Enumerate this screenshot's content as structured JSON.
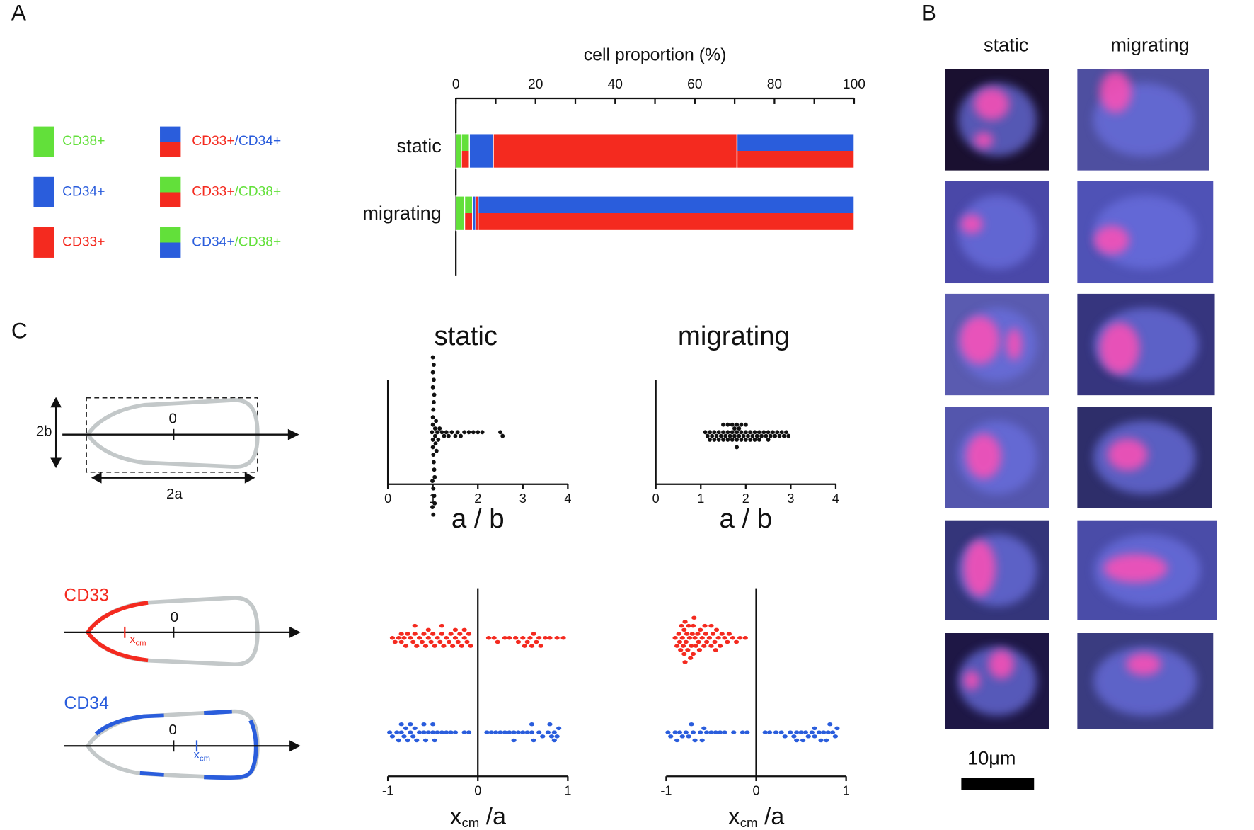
{
  "panel_labels": [
    "A",
    "B",
    "C"
  ],
  "panel_b": {
    "columns": [
      "static",
      "migrating"
    ],
    "scale_bar": "10μm"
  },
  "schematic": {
    "height_label": "2b",
    "width_label": "2a",
    "origin": "0",
    "markers": [
      {
        "label": "CD33",
        "x": "x",
        "sub": "cm"
      },
      {
        "label": "CD34",
        "x": "x",
        "sub": "cm"
      }
    ]
  },
  "chart_data": [
    {
      "type": "bar",
      "orientation": "horizontal",
      "stacked": true,
      "xlabel": "cell proportion (%)",
      "categories": [
        "static",
        "migrating"
      ],
      "xlim": [
        0,
        100
      ],
      "xticks": [
        0,
        20,
        40,
        60,
        80,
        100
      ],
      "minor_xticks": [
        10,
        30,
        50,
        70,
        90
      ],
      "legend": "left",
      "series": [
        {
          "name": "CD38+",
          "color": [
            "#62e03a"
          ],
          "values": [
            1.4,
            2.2
          ]
        },
        {
          "name": "CD33+/CD38+",
          "color": [
            "#f42a1f",
            "#62e03a"
          ],
          "values": [
            2,
            2
          ]
        },
        {
          "name": "CD34+",
          "color": [
            "#2a5ddc"
          ],
          "values": [
            6,
            0.8
          ]
        },
        {
          "name": "CD33+",
          "color": [
            "#f42a1f"
          ],
          "values": [
            61.2,
            0.6
          ]
        },
        {
          "name": "CD33+/CD34+",
          "color": [
            "#f42a1f",
            "#2a5ddc"
          ],
          "values": [
            29.4,
            94.4
          ]
        },
        {
          "name": "CD34+/CD38+",
          "color": [
            "#2a5ddc",
            "#62e03a"
          ],
          "values": [
            0,
            0
          ]
        }
      ]
    },
    {
      "type": "swarm",
      "title": "static",
      "xlabel": "a / b",
      "xlim": [
        0,
        4
      ],
      "xticks": [
        0,
        1,
        2,
        3,
        4
      ],
      "series": [
        {
          "color": "#111111",
          "values": [
            0.98,
            1,
            1,
            1,
            1,
            1.01,
            1.01,
            1.02,
            1.02,
            1.03,
            1.03,
            1.04,
            1.05,
            1,
            0.99,
            1.02,
            1.01,
            1,
            1.03,
            1.05,
            1.06,
            1.07,
            1.02,
            1.04,
            0.99,
            1,
            1.01,
            1.08,
            1.1,
            1.12,
            1.15,
            1.2,
            1.25,
            1.3,
            1.35,
            1.42,
            1.5,
            1.55,
            1.62,
            1.7,
            1.8,
            1.9,
            2.0,
            2.1,
            2.5,
            2.55
          ]
        }
      ]
    },
    {
      "type": "swarm",
      "title": "migrating",
      "xlabel": "a / b",
      "xlim": [
        0,
        4
      ],
      "xticks": [
        0,
        1,
        2,
        3,
        4
      ],
      "series": [
        {
          "color": "#111111",
          "values": [
            1.1,
            1.15,
            1.2,
            1.2,
            1.25,
            1.3,
            1.3,
            1.35,
            1.4,
            1.4,
            1.45,
            1.5,
            1.5,
            1.5,
            1.55,
            1.6,
            1.6,
            1.6,
            1.65,
            1.7,
            1.7,
            1.7,
            1.75,
            1.75,
            1.8,
            1.8,
            1.8,
            1.8,
            1.85,
            1.85,
            1.9,
            1.9,
            1.9,
            1.95,
            2.0,
            2.0,
            2.0,
            2.05,
            2.1,
            2.1,
            2.15,
            2.2,
            2.2,
            2.25,
            2.3,
            2.3,
            2.35,
            2.4,
            2.45,
            2.5,
            2.5,
            2.55,
            2.6,
            2.65,
            2.7,
            2.75,
            2.8,
            2.85,
            2.9,
            2.95
          ]
        }
      ]
    },
    {
      "type": "swarm",
      "xlabel": {
        "main": "x",
        "sub": "cm",
        "rest": " /a"
      },
      "xlim": [
        -1,
        1
      ],
      "xticks": [
        -1,
        0,
        1
      ],
      "series": [
        {
          "color": "#f42a1f",
          "values": [
            -0.95,
            -0.92,
            -0.88,
            -0.85,
            -0.82,
            -0.8,
            -0.78,
            -0.75,
            -0.72,
            -0.7,
            -0.68,
            -0.65,
            -0.62,
            -0.6,
            -0.58,
            -0.55,
            -0.52,
            -0.5,
            -0.48,
            -0.45,
            -0.42,
            -0.4,
            -0.38,
            -0.35,
            -0.32,
            -0.3,
            -0.28,
            -0.25,
            -0.22,
            -0.2,
            -0.18,
            -0.15,
            -0.12,
            -0.1,
            -0.08,
            0.12,
            0.18,
            0.22,
            0.3,
            0.35,
            0.42,
            0.45,
            0.5,
            0.52,
            0.58,
            0.6,
            0.62,
            0.68,
            0.7,
            0.75,
            0.8,
            0.88,
            0.95,
            -0.85,
            -0.7,
            -0.55,
            -0.4,
            -0.25,
            -0.15,
            0.55,
            0.65
          ]
        },
        {
          "color": "#2a5ddc",
          "values": [
            -0.98,
            -0.95,
            -0.9,
            -0.88,
            -0.85,
            -0.82,
            -0.8,
            -0.78,
            -0.75,
            -0.72,
            -0.7,
            -0.68,
            -0.65,
            -0.6,
            -0.58,
            -0.55,
            -0.5,
            -0.48,
            -0.45,
            -0.4,
            -0.35,
            -0.3,
            -0.25,
            -0.15,
            -0.1,
            0.1,
            0.15,
            0.2,
            0.25,
            0.3,
            0.35,
            0.4,
            0.45,
            0.5,
            0.55,
            0.6,
            0.62,
            0.68,
            0.72,
            0.78,
            0.82,
            0.85,
            0.88,
            0.9,
            -0.85,
            -0.75,
            -0.6,
            -0.5,
            0.4,
            0.6,
            0.8,
            0.85
          ]
        }
      ]
    },
    {
      "type": "swarm",
      "xlabel": {
        "main": "x",
        "sub": "cm",
        "rest": " /a"
      },
      "xlim": [
        -1,
        1
      ],
      "xticks": [
        -1,
        0,
        1
      ],
      "series": [
        {
          "color": "#f42a1f",
          "values": [
            -0.9,
            -0.88,
            -0.86,
            -0.85,
            -0.84,
            -0.82,
            -0.81,
            -0.8,
            -0.8,
            -0.79,
            -0.78,
            -0.77,
            -0.76,
            -0.75,
            -0.74,
            -0.72,
            -0.71,
            -0.7,
            -0.7,
            -0.68,
            -0.67,
            -0.65,
            -0.64,
            -0.62,
            -0.6,
            -0.58,
            -0.56,
            -0.55,
            -0.52,
            -0.5,
            -0.48,
            -0.46,
            -0.44,
            -0.42,
            -0.4,
            -0.38,
            -0.35,
            -0.32,
            -0.3,
            -0.26,
            -0.22,
            -0.18,
            -0.12,
            -0.83,
            -0.79,
            -0.73,
            -0.69,
            -0.63,
            -0.57,
            -0.5,
            -0.45
          ]
        },
        {
          "color": "#2a5ddc",
          "values": [
            -0.98,
            -0.95,
            -0.9,
            -0.85,
            -0.82,
            -0.78,
            -0.75,
            -0.7,
            -0.68,
            -0.62,
            -0.6,
            -0.55,
            -0.5,
            -0.45,
            -0.4,
            -0.35,
            -0.25,
            -0.15,
            -0.1,
            0.1,
            0.15,
            0.22,
            0.28,
            0.32,
            0.38,
            0.42,
            0.45,
            0.5,
            0.55,
            0.58,
            0.62,
            0.65,
            0.7,
            0.72,
            0.75,
            0.8,
            0.85,
            0.88,
            0.9,
            -0.88,
            -0.72,
            -0.58,
            0.45,
            0.52,
            0.65,
            0.78,
            0.82
          ]
        }
      ]
    }
  ]
}
